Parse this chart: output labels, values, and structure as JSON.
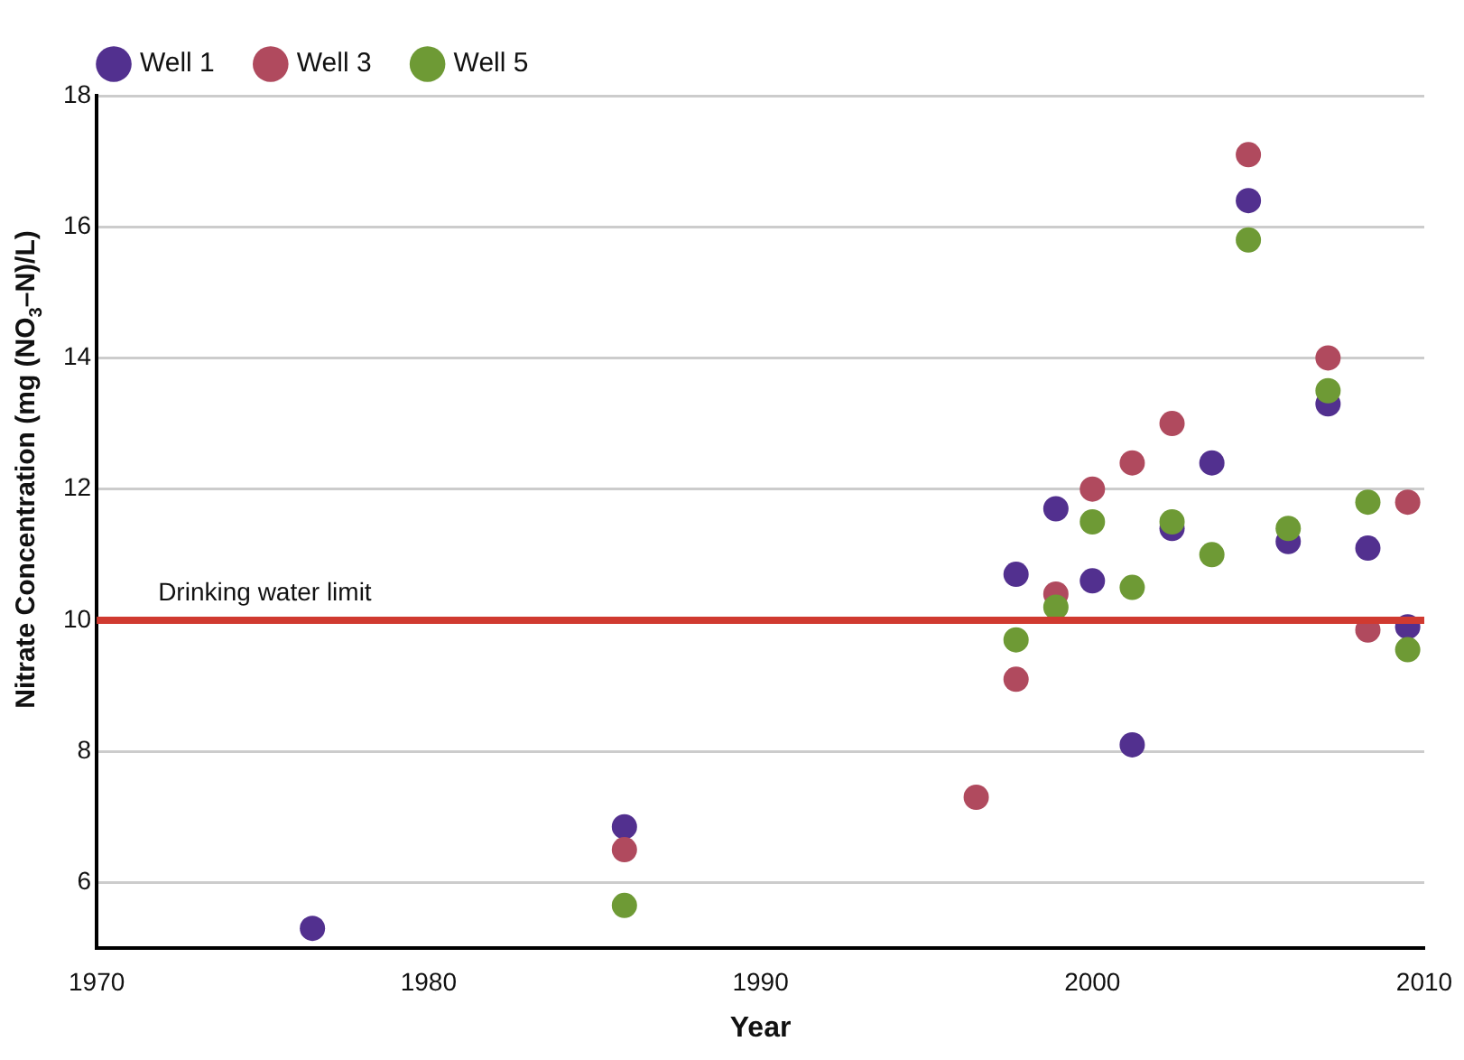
{
  "chart_data": {
    "type": "scatter",
    "xlabel": "Year",
    "ylabel": "Nitrate Concentration (mg (NO$_{3}$–N)/L)",
    "xlim": [
      1970,
      2010
    ],
    "xticks": [
      1970,
      1980,
      1990,
      2000,
      2010
    ],
    "ylim": [
      5,
      18
    ],
    "yticks": [
      6,
      8,
      10,
      12,
      14,
      16,
      18
    ],
    "grid": "y",
    "legend": "top left",
    "marker": "circle",
    "series": [
      {
        "name": "Well 1",
        "color": "#52308f",
        "x": [
          1976.5,
          1985.9,
          1997.7,
          1998.9,
          2000.0,
          2001.2,
          2002.4,
          2003.6,
          2004.7,
          2005.9,
          2007.1,
          2008.3,
          2009.5
        ],
        "values": [
          5.3,
          6.85,
          10.7,
          11.7,
          10.6,
          8.1,
          11.4,
          12.4,
          16.4,
          11.2,
          13.3,
          11.1,
          9.9
        ]
      },
      {
        "name": "Well 3",
        "color": "#b04a5e",
        "x": [
          1985.9,
          1996.5,
          1997.7,
          1998.9,
          2000.0,
          2001.2,
          2002.4,
          2004.7,
          2007.1,
          2008.3,
          2009.5
        ],
        "values": [
          6.5,
          7.3,
          9.1,
          10.4,
          12.0,
          12.4,
          13.0,
          17.1,
          14.0,
          9.85,
          11.8
        ]
      },
      {
        "name": "Well 5",
        "color": "#6e9a35",
        "x": [
          1985.9,
          1997.7,
          1998.9,
          2000.0,
          2001.2,
          2002.4,
          2003.6,
          2004.7,
          2005.9,
          2007.1,
          2008.3,
          2009.5
        ],
        "values": [
          5.65,
          9.7,
          10.2,
          11.5,
          10.5,
          11.5,
          11.0,
          15.8,
          11.4,
          13.5,
          11.8,
          9.55
        ]
      }
    ],
    "ref_lines": [
      {
        "axis": "y",
        "value": 10,
        "label": "Drinking water limit",
        "color": "#d03a30"
      }
    ]
  }
}
